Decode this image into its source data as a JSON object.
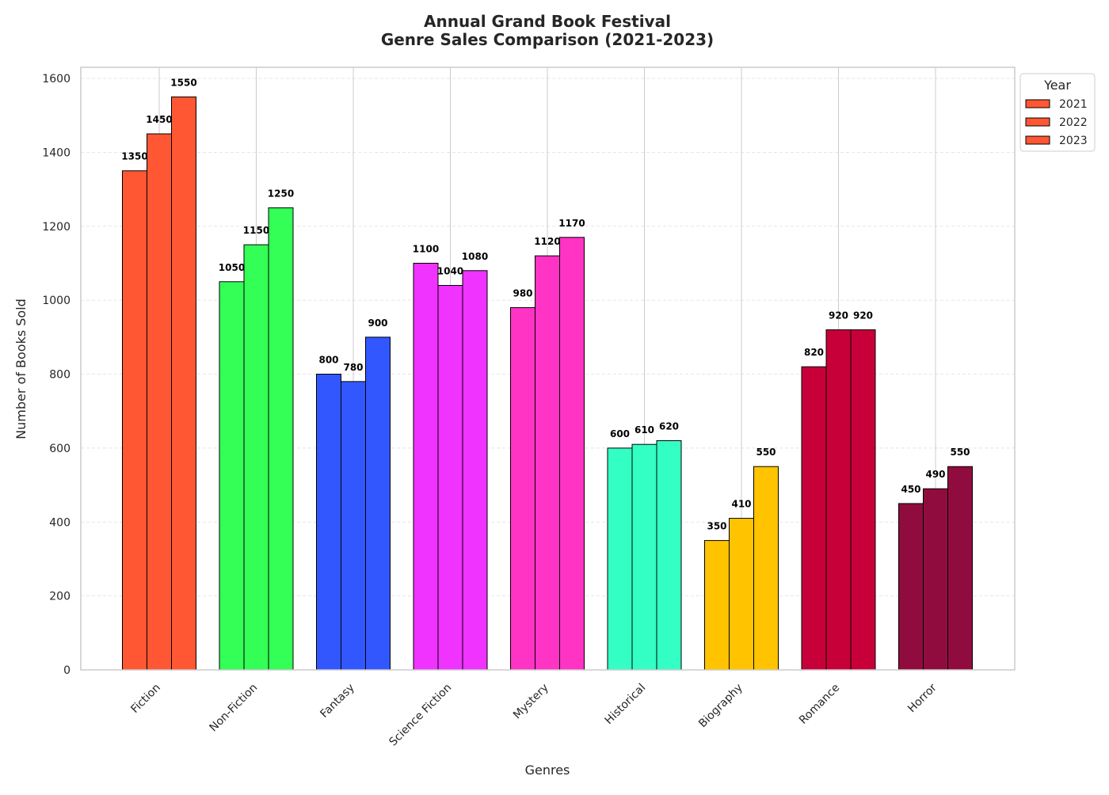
{
  "chart_data": {
    "type": "bar",
    "title_line1": "Annual Grand Book Festival",
    "title_line2": "Genre Sales Comparison (2021-2023)",
    "xlabel": "Genres",
    "ylabel": "Number of Books Sold",
    "ylim": [
      0,
      1630
    ],
    "yticks": [
      0,
      200,
      400,
      600,
      800,
      1000,
      1200,
      1400,
      1600
    ],
    "grid": true,
    "legend": {
      "title": "Year",
      "placement": "outside upper right",
      "swatch_color": "#FF5733"
    },
    "categories": [
      "Fiction",
      "Non-Fiction",
      "Fantasy",
      "Science Fiction",
      "Mystery",
      "Historical",
      "Biography",
      "Romance",
      "Horror"
    ],
    "category_colors": [
      "#FF5733",
      "#33FF57",
      "#3357FF",
      "#F033FF",
      "#FF33C4",
      "#33FFC4",
      "#FFC300",
      "#C70039",
      "#900C3F"
    ],
    "series": [
      {
        "name": "2021",
        "values": [
          1350,
          1050,
          800,
          1100,
          980,
          600,
          350,
          820,
          450
        ]
      },
      {
        "name": "2022",
        "values": [
          1450,
          1150,
          780,
          1040,
          1120,
          610,
          410,
          920,
          490
        ]
      },
      {
        "name": "2023",
        "values": [
          1550,
          1250,
          900,
          1080,
          1170,
          620,
          550,
          920,
          550
        ]
      }
    ]
  }
}
